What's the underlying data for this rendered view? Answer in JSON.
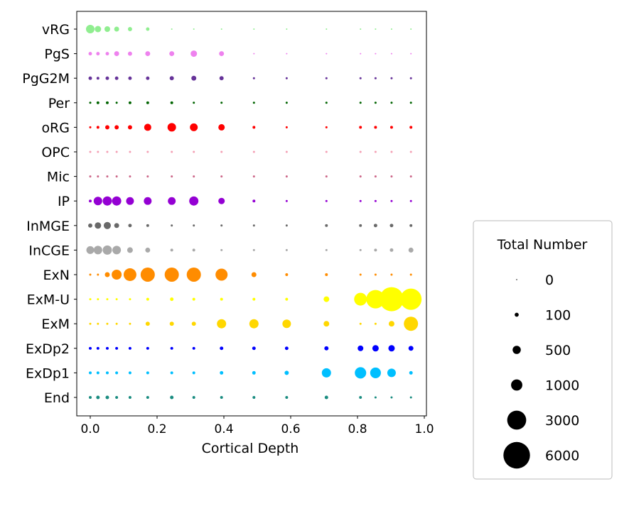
{
  "chart_data": {
    "type": "scatter",
    "subtype": "dot-plot",
    "title": "",
    "xlabel": "Cortical Depth",
    "ylabel": "",
    "xlim": [
      -0.04,
      1.02
    ],
    "xticks": [
      "0.0",
      "0.2",
      "0.4",
      "0.6",
      "0.8",
      "1.0"
    ],
    "grid": false,
    "x": [
      0.0,
      0.023,
      0.051,
      0.079,
      0.119,
      0.172,
      0.244,
      0.31,
      0.393,
      0.49,
      0.588,
      0.707,
      0.809,
      0.854,
      0.902,
      0.96
    ],
    "series": [
      {
        "name": "vRG",
        "color": "#90ee90",
        "values": [
          550,
          290,
          220,
          160,
          110,
          70,
          5,
          5,
          5,
          5,
          5,
          5,
          5,
          5,
          5,
          5
        ]
      },
      {
        "name": "PgS",
        "color": "#ee82ee",
        "values": [
          70,
          70,
          70,
          160,
          110,
          160,
          160,
          290,
          160,
          5,
          5,
          5,
          5,
          5,
          5,
          5
        ]
      },
      {
        "name": "PgG2M",
        "color": "#663399",
        "values": [
          70,
          40,
          70,
          70,
          70,
          70,
          110,
          160,
          110,
          18,
          18,
          18,
          18,
          18,
          18,
          18
        ]
      },
      {
        "name": "Per",
        "color": "#006400",
        "values": [
          18,
          40,
          40,
          18,
          40,
          40,
          40,
          18,
          18,
          18,
          18,
          18,
          18,
          18,
          18,
          18
        ]
      },
      {
        "name": "oRG",
        "color": "#ff0000",
        "values": [
          18,
          40,
          110,
          110,
          110,
          370,
          550,
          450,
          290,
          40,
          18,
          18,
          40,
          40,
          40,
          40
        ]
      },
      {
        "name": "OPC",
        "color": "#f4a0b4",
        "values": [
          18,
          18,
          18,
          18,
          18,
          18,
          18,
          18,
          18,
          18,
          18,
          18,
          18,
          18,
          18,
          18
        ]
      },
      {
        "name": "Mic",
        "color": "#cc6688",
        "values": [
          18,
          18,
          18,
          18,
          18,
          18,
          18,
          18,
          18,
          18,
          18,
          18,
          18,
          18,
          18,
          18
        ]
      },
      {
        "name": "IP",
        "color": "#9400d3",
        "values": [
          40,
          550,
          650,
          650,
          450,
          450,
          450,
          650,
          290,
          40,
          18,
          18,
          18,
          18,
          18,
          18
        ]
      },
      {
        "name": "InMGE",
        "color": "#696969",
        "values": [
          110,
          290,
          370,
          160,
          70,
          40,
          18,
          18,
          18,
          18,
          18,
          40,
          40,
          70,
          70,
          40
        ]
      },
      {
        "name": "InCGE",
        "color": "#a9a9a9",
        "values": [
          450,
          550,
          650,
          550,
          220,
          160,
          40,
          40,
          18,
          18,
          18,
          18,
          18,
          40,
          70,
          160
        ]
      },
      {
        "name": "ExN",
        "color": "#ff8c00",
        "values": [
          18,
          18,
          160,
          765,
          1300,
          1630,
          1630,
          1630,
          1160,
          160,
          40,
          40,
          18,
          18,
          18,
          18
        ]
      },
      {
        "name": "ExM-U",
        "color": "#ffff00",
        "values": [
          18,
          18,
          18,
          18,
          18,
          40,
          70,
          40,
          40,
          40,
          40,
          220,
          1300,
          2830,
          4930,
          3800
        ]
      },
      {
        "name": "ExM",
        "color": "#ffd700",
        "values": [
          18,
          18,
          18,
          18,
          18,
          110,
          110,
          110,
          650,
          650,
          550,
          220,
          18,
          18,
          220,
          1630
        ]
      },
      {
        "name": "ExDp2",
        "color": "#0000ff",
        "values": [
          40,
          40,
          40,
          40,
          40,
          40,
          40,
          40,
          70,
          70,
          70,
          110,
          220,
          290,
          290,
          160
        ]
      },
      {
        "name": "ExDp1",
        "color": "#00bfff",
        "values": [
          40,
          40,
          40,
          40,
          40,
          40,
          40,
          40,
          70,
          70,
          110,
          650,
          1020,
          900,
          550,
          70
        ]
      },
      {
        "name": "End",
        "color": "#1a8c80",
        "values": [
          40,
          70,
          70,
          40,
          40,
          40,
          70,
          40,
          40,
          40,
          40,
          70,
          40,
          18,
          18,
          18
        ]
      }
    ],
    "size_legend": {
      "title": "Total Number",
      "placement": "right",
      "entries": [
        {
          "label": "0",
          "value": 0
        },
        {
          "label": "100",
          "value": 100
        },
        {
          "label": "500",
          "value": 500
        },
        {
          "label": "1000",
          "value": 1000
        },
        {
          "label": "3000",
          "value": 3000
        },
        {
          "label": "6000",
          "value": 6000
        }
      ]
    }
  }
}
